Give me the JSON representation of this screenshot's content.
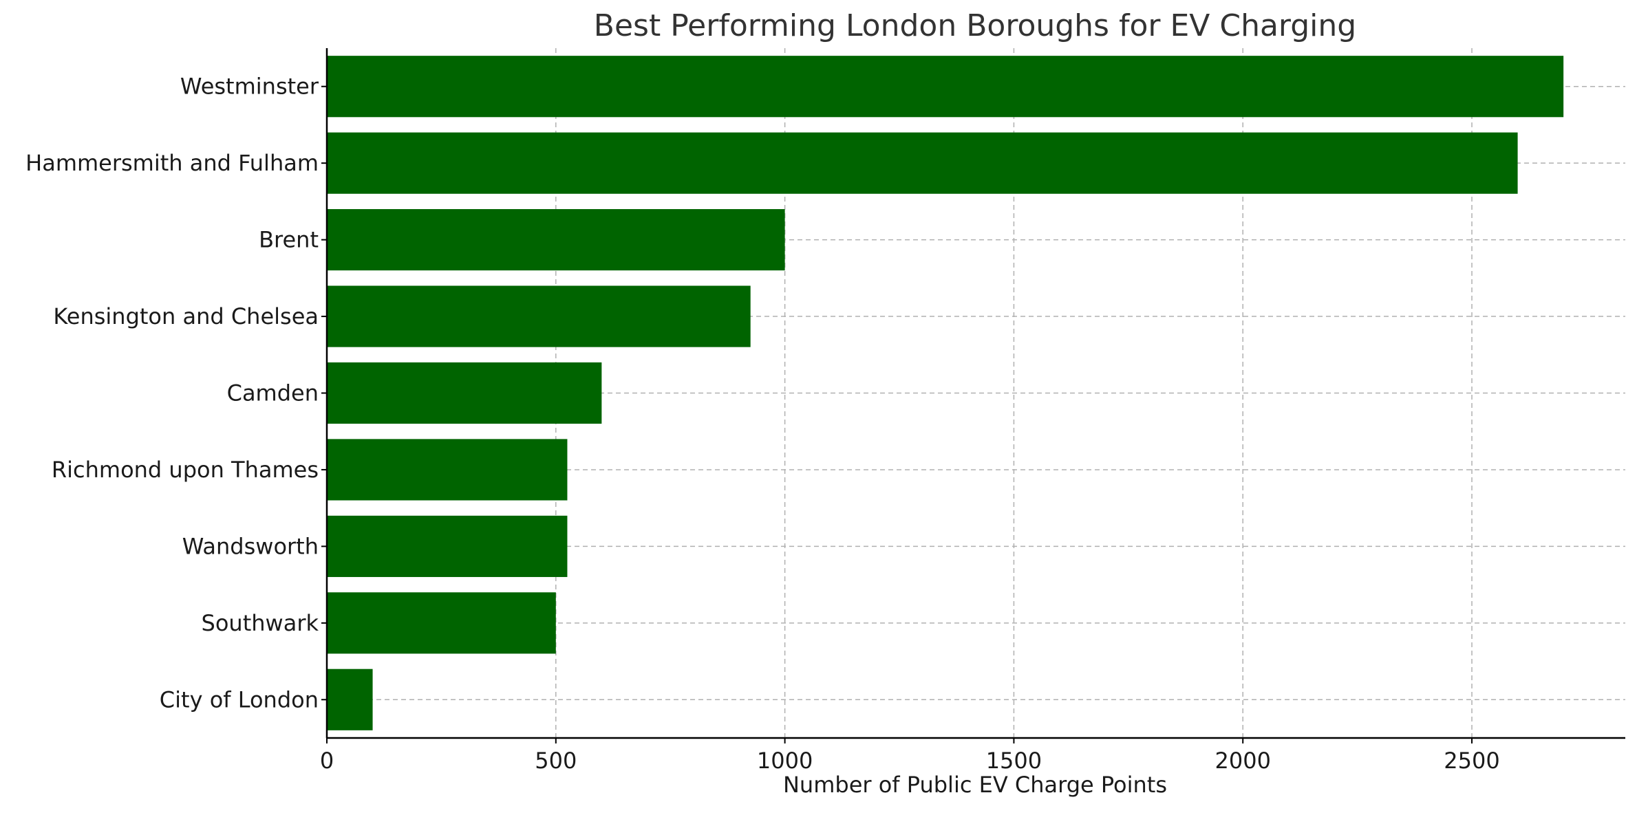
{
  "chart_data": {
    "type": "bar",
    "orientation": "horizontal",
    "title": "Best Performing London Boroughs for EV Charging",
    "xlabel": "Number of Public EV Charge Points",
    "ylabel": "",
    "categories": [
      "Westminster",
      "Hammersmith and Fulham",
      "Brent",
      "Kensington and Chelsea",
      "Camden",
      "Richmond upon Thames",
      "Wandsworth",
      "Southwark",
      "City of London"
    ],
    "values": [
      2700,
      2600,
      1000,
      925,
      600,
      525,
      525,
      500,
      100
    ],
    "xlim": [
      0,
      2835
    ],
    "xticks": [
      0,
      500,
      1000,
      1500,
      2000,
      2500
    ],
    "grid": true,
    "legend": "none",
    "colors": {
      "bar": "#006400"
    }
  }
}
